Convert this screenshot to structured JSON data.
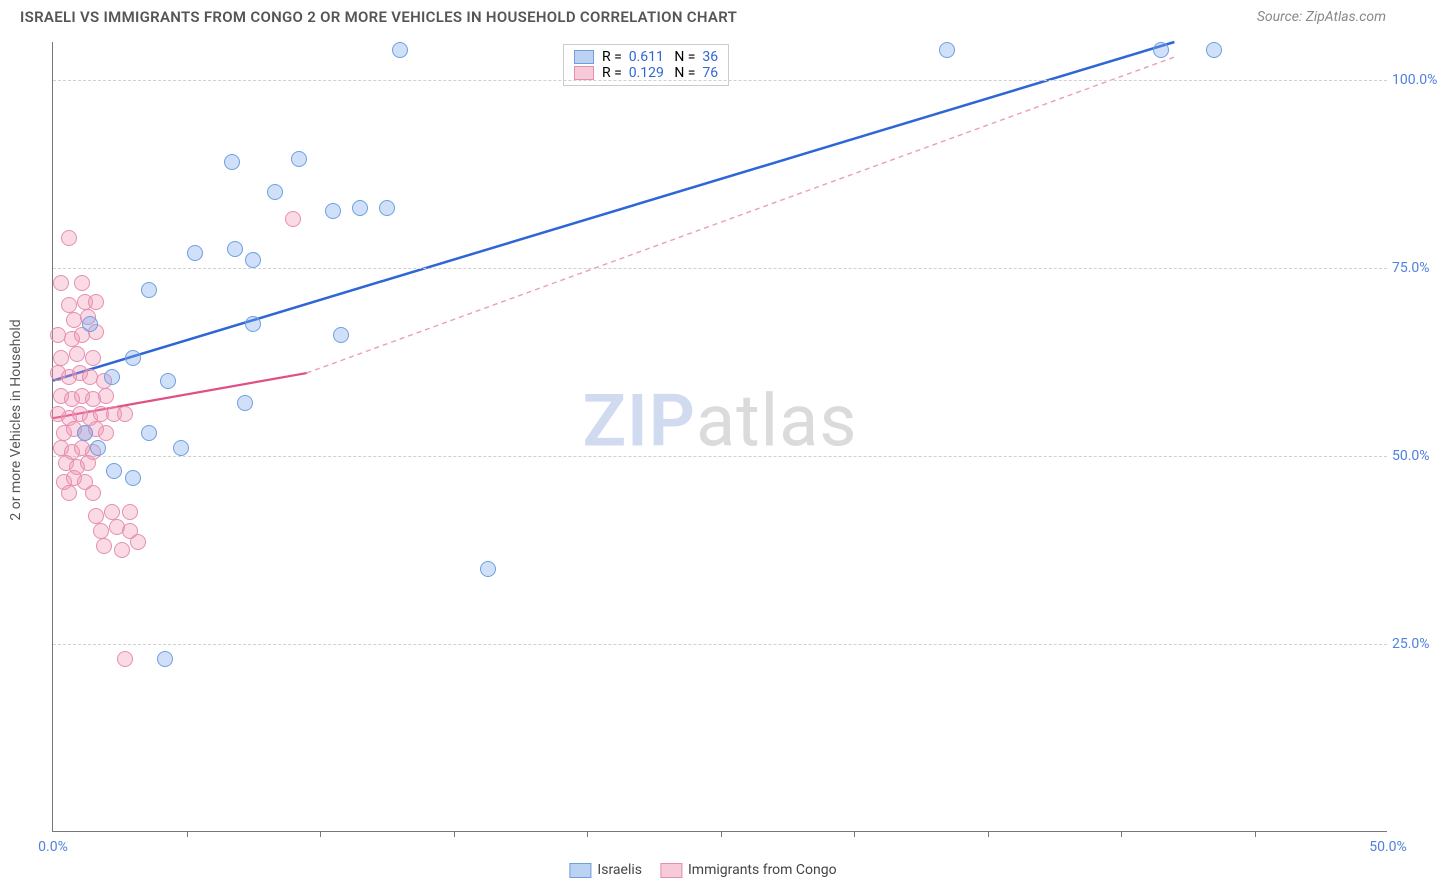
{
  "title": "ISRAELI VS IMMIGRANTS FROM CONGO 2 OR MORE VEHICLES IN HOUSEHOLD CORRELATION CHART",
  "source": "Source: ZipAtlas.com",
  "y_axis_label": "2 or more Vehicles in Household",
  "watermark": {
    "bold": "ZIP",
    "rest": "atlas"
  },
  "chart": {
    "type": "scatter",
    "xlim": [
      0,
      50
    ],
    "ylim": [
      0,
      105
    ],
    "y_ticks": [
      {
        "v": 25,
        "label": "25.0%"
      },
      {
        "v": 50,
        "label": "50.0%"
      },
      {
        "v": 75,
        "label": "75.0%"
      },
      {
        "v": 100,
        "label": "100.0%"
      }
    ],
    "x_ticks": [
      {
        "v": 0,
        "label": "0.0%"
      },
      {
        "v": 50,
        "label": "50.0%"
      }
    ],
    "x_tick_marks": [
      5,
      10,
      15,
      20,
      25,
      30,
      35,
      40,
      45
    ],
    "background_color": "#ffffff",
    "grid_color": "#d0d0d0",
    "marker_size": 16,
    "series": [
      {
        "name": "Israelis",
        "label": "Israelis",
        "R": "0.611",
        "N": "36",
        "color_fill": "rgba(120,165,235,0.35)",
        "color_stroke": "#6f9fe0",
        "swatch_fill": "#bcd2f2",
        "swatch_stroke": "#6f9fe0",
        "trend": {
          "x1": 0,
          "y1": 60,
          "x2": 42,
          "y2": 105,
          "stroke": "#2e66d6",
          "width": 2.5,
          "dash": "none"
        },
        "trend_ext": null,
        "points": [
          [
            13,
            104
          ],
          [
            33.5,
            104
          ],
          [
            41.5,
            104
          ],
          [
            43.5,
            104
          ],
          [
            6.7,
            89
          ],
          [
            9.2,
            89.5
          ],
          [
            8.3,
            85
          ],
          [
            10.5,
            82.5
          ],
          [
            11.5,
            83
          ],
          [
            12.5,
            83
          ],
          [
            5.3,
            77
          ],
          [
            6.8,
            77.5
          ],
          [
            7.5,
            76
          ],
          [
            3.6,
            72
          ],
          [
            1.4,
            67.5
          ],
          [
            7.5,
            67.5
          ],
          [
            10.8,
            66
          ],
          [
            3.0,
            63
          ],
          [
            2.2,
            60.5
          ],
          [
            4.3,
            60
          ],
          [
            7.2,
            57
          ],
          [
            1.2,
            53
          ],
          [
            3.6,
            53
          ],
          [
            1.7,
            51
          ],
          [
            4.8,
            51
          ],
          [
            2.3,
            48
          ],
          [
            3.0,
            47
          ],
          [
            16.3,
            35
          ],
          [
            4.2,
            23
          ]
        ]
      },
      {
        "name": "Immigrants from Congo",
        "label": "Immigrants from Congo",
        "R": "0.129",
        "N": "76",
        "color_fill": "rgba(240,150,180,0.35)",
        "color_stroke": "#e68fb0",
        "swatch_fill": "#f6cad9",
        "swatch_stroke": "#e68fb0",
        "trend": {
          "x1": 0,
          "y1": 55,
          "x2": 9.5,
          "y2": 61,
          "stroke": "#e04f84",
          "width": 2.2,
          "dash": "none"
        },
        "trend_ext": {
          "x1": 9.5,
          "y1": 61,
          "x2": 42,
          "y2": 103,
          "stroke": "#e9a0b8",
          "width": 1.4,
          "dash": "5,4"
        },
        "points": [
          [
            9.0,
            81.5
          ],
          [
            0.6,
            79
          ],
          [
            0.3,
            73
          ],
          [
            1.1,
            73
          ],
          [
            0.6,
            70
          ],
          [
            1.2,
            70.5
          ],
          [
            1.6,
            70.5
          ],
          [
            0.8,
            68
          ],
          [
            1.3,
            68.5
          ],
          [
            0.2,
            66
          ],
          [
            0.7,
            65.5
          ],
          [
            1.1,
            66
          ],
          [
            1.6,
            66.5
          ],
          [
            0.3,
            63
          ],
          [
            0.9,
            63.5
          ],
          [
            1.5,
            63
          ],
          [
            0.2,
            61
          ],
          [
            0.6,
            60.5
          ],
          [
            1.0,
            61
          ],
          [
            1.4,
            60.5
          ],
          [
            1.9,
            60
          ],
          [
            0.3,
            58
          ],
          [
            0.7,
            57.5
          ],
          [
            1.1,
            58
          ],
          [
            1.5,
            57.5
          ],
          [
            2.0,
            58
          ],
          [
            0.2,
            55.5
          ],
          [
            0.6,
            55
          ],
          [
            1.0,
            55.5
          ],
          [
            1.4,
            55
          ],
          [
            1.8,
            55.5
          ],
          [
            2.3,
            55.5
          ],
          [
            2.7,
            55.5
          ],
          [
            0.4,
            53
          ],
          [
            0.8,
            53.5
          ],
          [
            1.2,
            53
          ],
          [
            1.6,
            53.5
          ],
          [
            2.0,
            53
          ],
          [
            0.3,
            51
          ],
          [
            0.7,
            50.5
          ],
          [
            1.1,
            51
          ],
          [
            1.5,
            50.5
          ],
          [
            0.5,
            49
          ],
          [
            0.9,
            48.5
          ],
          [
            1.3,
            49
          ],
          [
            0.4,
            46.5
          ],
          [
            0.8,
            47
          ],
          [
            1.2,
            46.5
          ],
          [
            0.6,
            45
          ],
          [
            1.5,
            45
          ],
          [
            1.6,
            42
          ],
          [
            2.2,
            42.5
          ],
          [
            2.9,
            42.5
          ],
          [
            1.8,
            40
          ],
          [
            2.4,
            40.5
          ],
          [
            2.9,
            40
          ],
          [
            1.9,
            38
          ],
          [
            2.6,
            37.5
          ],
          [
            3.2,
            38.5
          ],
          [
            2.7,
            23
          ]
        ]
      }
    ]
  },
  "legend_top": {
    "R_label": "R =",
    "N_label": "N =",
    "value_color": "#2e66d6"
  },
  "legend_bottom_labels": {
    "israelis_aria": "israelis-swatch",
    "congo_aria": "congo-swatch"
  },
  "colors": {
    "title": "#555555",
    "source": "#888888",
    "axis": "#777777",
    "tick_label": "#5080e0"
  }
}
